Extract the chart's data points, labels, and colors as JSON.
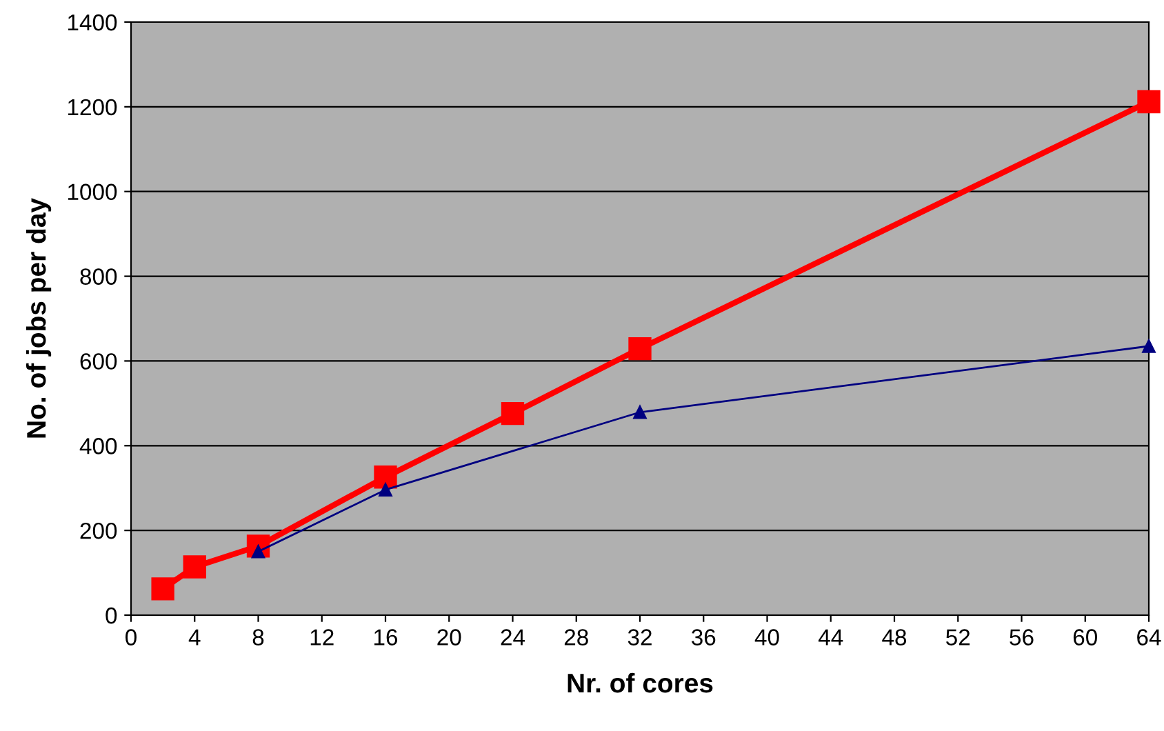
{
  "chart_data": {
    "type": "line",
    "xlabel": "Nr. of cores",
    "ylabel": "No. of jobs per day",
    "xlim": [
      0,
      64
    ],
    "xticks": [
      0,
      4,
      8,
      12,
      16,
      20,
      24,
      28,
      32,
      36,
      40,
      44,
      48,
      52,
      56,
      60,
      64
    ],
    "ylim": [
      0,
      1400
    ],
    "yticks": [
      0,
      200,
      400,
      600,
      800,
      1000,
      1200,
      1400
    ],
    "grid": "y",
    "legend": false,
    "series": [
      {
        "color": "#ff0000",
        "marker": "square",
        "x": [
          2,
          4,
          8,
          16,
          24,
          32,
          64
        ],
        "values": [
          62,
          114,
          163,
          326,
          476,
          629,
          1212
        ]
      },
      {
        "color": "#000080",
        "marker": "triangle",
        "x": [
          8,
          16,
          32,
          64
        ],
        "values": [
          150,
          296,
          479,
          635
        ]
      }
    ]
  }
}
